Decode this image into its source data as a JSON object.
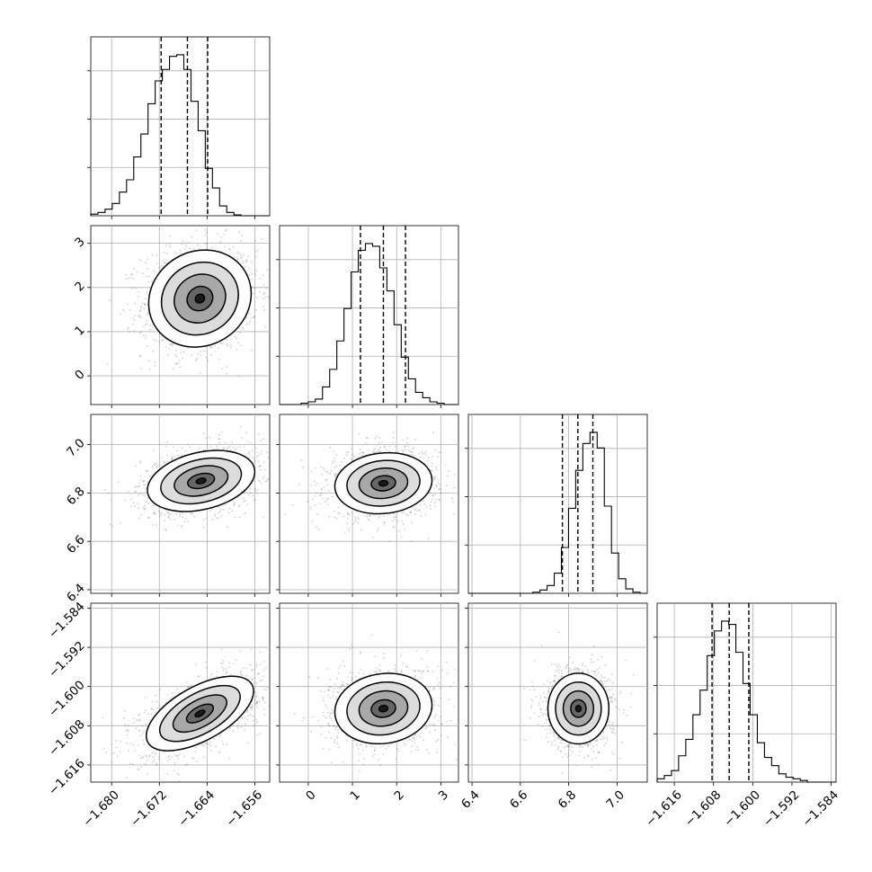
{
  "chart_data": {
    "type": "corner",
    "grid": true,
    "colors": {
      "line": "#000000",
      "grid": "#b0b0b0",
      "scatter": "#555555"
    },
    "parameters": [
      {
        "range": [
          -1.6835,
          -1.6535
        ],
        "ticks": [
          -1.68,
          -1.672,
          -1.664,
          -1.656
        ],
        "tick_labels": [
          "−1.680",
          "−1.672",
          "−1.664",
          "−1.656"
        ]
      },
      {
        "range": [
          -0.65,
          3.4
        ],
        "ticks": [
          0,
          1,
          2,
          3
        ],
        "tick_labels": [
          "0",
          "1",
          "2",
          "3"
        ]
      },
      {
        "range": [
          6.385,
          7.125
        ],
        "ticks": [
          6.4,
          6.6,
          6.8,
          7.0
        ],
        "tick_labels": [
          "6.4",
          "6.6",
          "6.8",
          "7.0"
        ]
      },
      {
        "range": [
          -1.6195,
          -1.583
        ],
        "ticks": [
          -1.616,
          -1.608,
          -1.6,
          -1.592,
          -1.584
        ],
        "tick_labels": [
          "−1.616",
          "−1.608",
          "−1.600",
          "−1.592",
          "−1.584"
        ]
      }
    ],
    "histograms": [
      {
        "param": 0,
        "quantiles": [
          -1.6717,
          -1.6673,
          -1.6639
        ],
        "counts": [
          2,
          4,
          8,
          15,
          29,
          44,
          72,
          100,
          137,
          165,
          179,
          195,
          197,
          179,
          140,
          104,
          58,
          34,
          12,
          4,
          1,
          0,
          0,
          0,
          0
        ]
      },
      {
        "param": 1,
        "quantiles": [
          1.18,
          1.7,
          2.2
        ],
        "counts": [
          0,
          0,
          0,
          1,
          2,
          4,
          13,
          26,
          47,
          71,
          98,
          114,
          119,
          117,
          101,
          84,
          59,
          35,
          19,
          9,
          5,
          2,
          1,
          0,
          0
        ]
      },
      {
        "param": 2,
        "quantiles": [
          6.774,
          6.838,
          6.9
        ],
        "counts": [
          0,
          0,
          0,
          0,
          0,
          0,
          0,
          0,
          0,
          1,
          3,
          7,
          18,
          41,
          76,
          110,
          134,
          144,
          130,
          78,
          36,
          13,
          4,
          1,
          0
        ]
      },
      {
        "param": 3,
        "quantiles": [
          -1.6083,
          -1.6048,
          -1.6008
        ],
        "counts": [
          2,
          4,
          7,
          16,
          26,
          41,
          56,
          77,
          92,
          98,
          96,
          79,
          60,
          41,
          24,
          15,
          10,
          5,
          3,
          2,
          1,
          0,
          0,
          0,
          0
        ]
      }
    ],
    "joints": [
      {
        "x": 0,
        "y": 1,
        "mode": [
          -1.6652,
          1.75
        ],
        "sigma": [
          0.0043,
          0.55
        ],
        "rho": 0.1
      },
      {
        "x": 0,
        "y": 2,
        "mode": [
          -1.665,
          6.85
        ],
        "sigma": [
          0.0045,
          0.063
        ],
        "rho": 0.3
      },
      {
        "x": 1,
        "y": 2,
        "mode": [
          1.7,
          6.84
        ],
        "sigma": [
          0.55,
          0.063
        ],
        "rho": 0.1
      },
      {
        "x": 0,
        "y": 3,
        "mode": [
          -1.6652,
          -1.6055
        ],
        "sigma": [
          0.0045,
          0.0038
        ],
        "rho": 0.6
      },
      {
        "x": 1,
        "y": 3,
        "mode": [
          1.7,
          -1.6045
        ],
        "sigma": [
          0.55,
          0.0036
        ],
        "rho": 0.1
      },
      {
        "x": 2,
        "y": 3,
        "mode": [
          6.84,
          -1.6045
        ],
        "sigma": [
          0.063,
          0.0036
        ],
        "rho": 0.0
      }
    ]
  }
}
